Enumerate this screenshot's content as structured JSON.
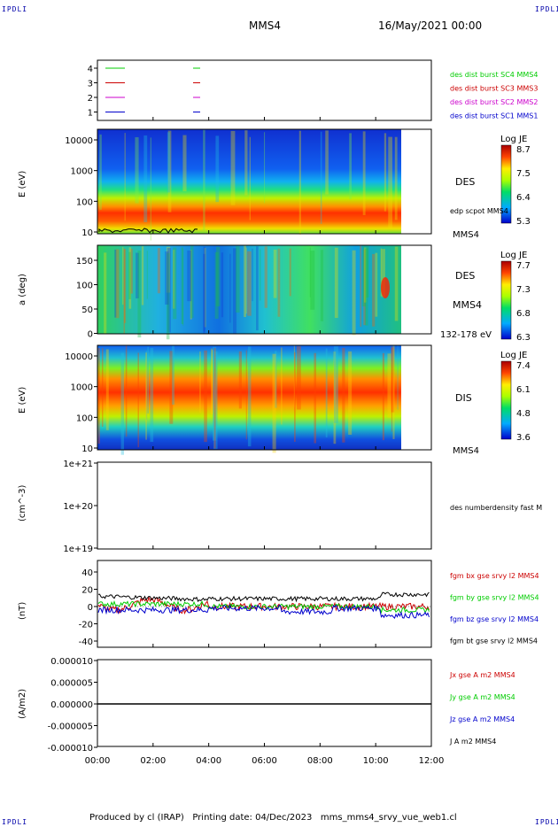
{
  "header": {
    "logo_left": "IPDLI",
    "logo_right": "IPDLI",
    "spacecraft": "MMS4",
    "date": "16/May/2021 00:00",
    "footer_logo_left": "IPDLI",
    "footer_logo_right": "IPDLI"
  },
  "footer": {
    "produced_by": "Produced by cl (IRAP)",
    "printing_date": "Printing date: 04/Dec/2023",
    "file": "mms_mms4_srvy_vue_web1.cl"
  },
  "chart_data": [
    {
      "type": "line",
      "panel": "burst-availability",
      "yticks": [
        "4",
        "3",
        "2",
        "1"
      ],
      "series": [
        {
          "name": "des dist burst SC1 MMS1",
          "color": "#0000cc",
          "level": 1
        },
        {
          "name": "des dist burst SC2 MMS2",
          "color": "#cc00cc",
          "level": 2
        },
        {
          "name": "des dist burst SC3 MMS3",
          "color": "#cc0000",
          "level": 3
        },
        {
          "name": "des dist burst SC4 MMS4",
          "color": "#00cc00",
          "level": 4
        }
      ]
    },
    {
      "type": "heatmap",
      "panel": "des-energy",
      "ylabel": "E (eV)",
      "yscale": "log",
      "yticks": [
        "10000",
        "1000",
        "100",
        "10"
      ],
      "side_label": "DES",
      "overlay_label": "edp scpot MMS4",
      "bottom_label": "MMS4",
      "colorbar": {
        "title": "Log JE",
        "ticks": [
          "8.7",
          "7.5",
          "6.4",
          "5.3"
        ]
      }
    },
    {
      "type": "heatmap",
      "panel": "des-pitch-angle",
      "ylabel": "a (deg)",
      "ylim": [
        0,
        180
      ],
      "yticks": [
        "150",
        "100",
        "50",
        "0"
      ],
      "side_label": "DES",
      "side_label2": "MMS4",
      "bottom_label": "132-178 eV",
      "colorbar": {
        "title": "Log JE",
        "ticks": [
          "7.7",
          "7.3",
          "6.8",
          "6.3"
        ]
      }
    },
    {
      "type": "heatmap",
      "panel": "dis-energy",
      "ylabel": "E (eV)",
      "yscale": "log",
      "yticks": [
        "10000",
        "1000",
        "100",
        "10"
      ],
      "side_label": "DIS",
      "bottom_label": "MMS4",
      "colorbar": {
        "title": "Log JE",
        "ticks": [
          "7.4",
          "6.1",
          "4.8",
          "3.6"
        ]
      }
    },
    {
      "type": "line",
      "panel": "density",
      "ylabel": "(cm^-3)",
      "yscale": "log",
      "yticks": [
        "1e+21",
        "1e+20",
        "1e+19"
      ],
      "series": [
        {
          "name": "des numberdensity fast M",
          "color": "#000000"
        }
      ]
    },
    {
      "type": "line",
      "panel": "magnetic-field",
      "ylabel": "(nT)",
      "ylim": [
        -50,
        50
      ],
      "yticks": [
        "40",
        "20",
        "0",
        "-20",
        "-40"
      ],
      "series": [
        {
          "name": "fgm bx gse srvy l2 MMS4",
          "color": "#cc0000"
        },
        {
          "name": "fgm by gse srvy l2 MMS4",
          "color": "#00cc00"
        },
        {
          "name": "fgm bz gse srvy l2 MMS4",
          "color": "#0000cc"
        },
        {
          "name": "fgm bt gse srvy l2 MMS4",
          "color": "#000000"
        }
      ]
    },
    {
      "type": "line",
      "panel": "current-density",
      "ylabel": "(A/m2)",
      "ylim": [
        -1e-05,
        1e-05
      ],
      "yticks": [
        "0.000010",
        "0.000005",
        "0.000000",
        "-0.000005",
        "-0.000010"
      ],
      "series": [
        {
          "name": "Jx gse A m2 MMS4",
          "color": "#cc0000"
        },
        {
          "name": "Jy gse A m2 MMS4",
          "color": "#00cc00"
        },
        {
          "name": "Jz gse A m2 MMS4",
          "color": "#0000cc"
        },
        {
          "name": "J A m2 MMS4",
          "color": "#000000"
        }
      ]
    }
  ],
  "xaxis": {
    "ticks": [
      "00:00",
      "02:00",
      "04:00",
      "06:00",
      "08:00",
      "10:00",
      "12:00"
    ]
  }
}
